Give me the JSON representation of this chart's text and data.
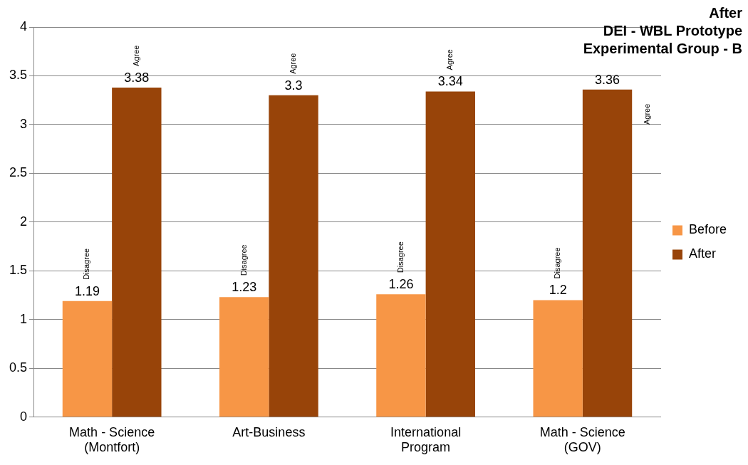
{
  "chart_data": {
    "type": "bar",
    "title": "After",
    "subtitle": "DEI - WBL Prototype Experimental Group - B",
    "categories": [
      "Math - Science (Montfort)",
      "Art-Business",
      "International Program",
      "Math - Science (GOV)"
    ],
    "series": [
      {
        "name": "Before",
        "color": "#f79646",
        "values": [
          1.19,
          1.23,
          1.26,
          1.2
        ]
      },
      {
        "name": "After",
        "color": "#984409",
        "values": [
          3.38,
          3.3,
          3.34,
          3.36
        ]
      }
    ],
    "ylim": [
      0,
      4
    ],
    "yticks": [
      0,
      0.5,
      1,
      1.5,
      2,
      2.5,
      3,
      3.5,
      4
    ],
    "grid": "y",
    "legend": "right",
    "data_labels": true,
    "annotations": [
      "Disagree",
      "Agree",
      "Disagree",
      "Agree",
      "Disagree",
      "Agree",
      "Disagree",
      "Agree"
    ]
  }
}
